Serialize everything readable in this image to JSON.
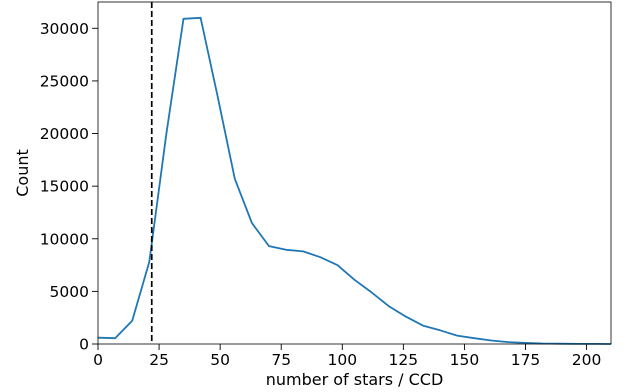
{
  "chart_data": {
    "type": "line",
    "title": "",
    "xlabel": "number of stars / CCD",
    "ylabel": "Count",
    "xlim": [
      0,
      210
    ],
    "ylim": [
      0,
      32500
    ],
    "xticks": [
      0,
      25,
      50,
      75,
      100,
      125,
      150,
      175,
      200
    ],
    "yticks": [
      0,
      5000,
      10000,
      15000,
      20000,
      25000,
      30000
    ],
    "xtick_labels": [
      "0",
      "25",
      "50",
      "75",
      "100",
      "125",
      "150",
      "175",
      "200"
    ],
    "ytick_labels": [
      "0",
      "5000",
      "10000",
      "15000",
      "20000",
      "25000",
      "30000"
    ],
    "grid": false,
    "series": [
      {
        "color": "#1f77b4",
        "x": [
          0,
          7,
          14,
          21,
          28,
          35,
          42,
          49,
          56,
          63,
          70,
          77,
          84,
          91,
          98,
          105,
          112,
          119,
          126,
          133,
          140,
          147,
          154,
          161,
          168,
          175,
          182,
          189,
          196,
          203,
          210
        ],
        "y": [
          600,
          550,
          2200,
          7800,
          20000,
          30900,
          31000,
          23500,
          15700,
          11500,
          9300,
          8950,
          8800,
          8250,
          7500,
          6100,
          4900,
          3600,
          2600,
          1750,
          1300,
          800,
          550,
          330,
          180,
          100,
          50,
          25,
          10,
          5,
          0
        ]
      }
    ],
    "vlines": [
      {
        "x": 22,
        "color": "#000000",
        "style": "dashed"
      }
    ]
  }
}
